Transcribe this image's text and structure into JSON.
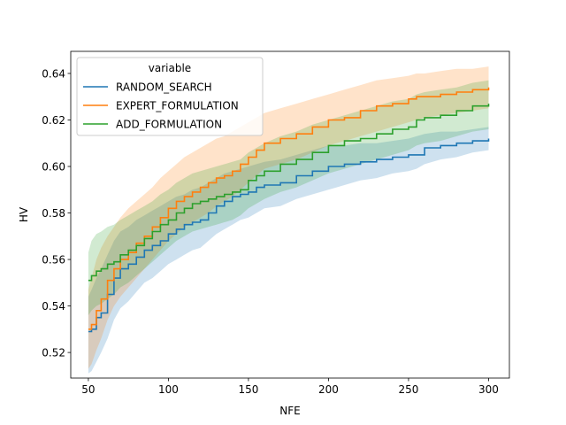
{
  "chart_data": {
    "type": "line",
    "title": "",
    "xlabel": "NFE",
    "ylabel": "HV",
    "xlim": [
      39,
      313
    ],
    "ylim": [
      0.509,
      0.6495
    ],
    "xticks": [
      50,
      100,
      150,
      200,
      250,
      300
    ],
    "xtick_labels": [
      "50",
      "100",
      "150",
      "200",
      "250",
      "300"
    ],
    "yticks": [
      0.52,
      0.54,
      0.56,
      0.58,
      0.6,
      0.62,
      0.64
    ],
    "ytick_labels": [
      "0.52",
      "0.54",
      "0.56",
      "0.58",
      "0.60",
      "0.62",
      "0.64"
    ],
    "grid": false,
    "legend": {
      "title": "variable",
      "placement": "top-left"
    },
    "series": [
      {
        "name": "RANDOM_SEARCH",
        "color": "#1f77b4",
        "x": [
          50,
          52,
          55,
          58,
          62,
          66,
          70,
          75,
          80,
          85,
          90,
          95,
          100,
          105,
          110,
          115,
          120,
          125,
          130,
          135,
          140,
          145,
          150,
          155,
          160,
          170,
          180,
          190,
          200,
          210,
          220,
          230,
          240,
          250,
          255,
          260,
          270,
          280,
          290,
          300
        ],
        "y": [
          0.529,
          0.53,
          0.535,
          0.537,
          0.545,
          0.552,
          0.556,
          0.558,
          0.561,
          0.564,
          0.566,
          0.568,
          0.571,
          0.573,
          0.575,
          0.576,
          0.577,
          0.58,
          0.583,
          0.585,
          0.587,
          0.588,
          0.589,
          0.591,
          0.592,
          0.593,
          0.596,
          0.598,
          0.6,
          0.601,
          0.602,
          0.603,
          0.604,
          0.605,
          0.605,
          0.608,
          0.609,
          0.61,
          0.611,
          0.612
        ],
        "lower": [
          0.511,
          0.512,
          0.516,
          0.52,
          0.526,
          0.534,
          0.539,
          0.542,
          0.546,
          0.55,
          0.552,
          0.555,
          0.558,
          0.56,
          0.562,
          0.564,
          0.565,
          0.568,
          0.571,
          0.573,
          0.575,
          0.577,
          0.578,
          0.58,
          0.582,
          0.583,
          0.586,
          0.588,
          0.59,
          0.592,
          0.594,
          0.595,
          0.597,
          0.598,
          0.599,
          0.601,
          0.603,
          0.604,
          0.606,
          0.607
        ],
        "upper": [
          0.544,
          0.547,
          0.552,
          0.556,
          0.562,
          0.568,
          0.572,
          0.574,
          0.577,
          0.579,
          0.581,
          0.583,
          0.585,
          0.587,
          0.588,
          0.59,
          0.591,
          0.593,
          0.595,
          0.597,
          0.598,
          0.599,
          0.6,
          0.601,
          0.602,
          0.603,
          0.605,
          0.607,
          0.609,
          0.609,
          0.61,
          0.61,
          0.611,
          0.612,
          0.613,
          0.614,
          0.615,
          0.615,
          0.616,
          0.617
        ]
      },
      {
        "name": "EXPERT_FORMULATION",
        "color": "#ff7f0e",
        "x": [
          50,
          52,
          55,
          58,
          62,
          66,
          70,
          75,
          80,
          85,
          90,
          95,
          100,
          105,
          110,
          115,
          120,
          125,
          130,
          135,
          140,
          145,
          150,
          155,
          160,
          170,
          180,
          190,
          200,
          210,
          220,
          230,
          240,
          250,
          255,
          260,
          270,
          280,
          290,
          300
        ],
        "y": [
          0.53,
          0.532,
          0.538,
          0.543,
          0.551,
          0.556,
          0.56,
          0.563,
          0.567,
          0.57,
          0.574,
          0.578,
          0.582,
          0.585,
          0.587,
          0.589,
          0.591,
          0.593,
          0.595,
          0.596,
          0.598,
          0.601,
          0.604,
          0.607,
          0.61,
          0.612,
          0.614,
          0.617,
          0.62,
          0.621,
          0.624,
          0.626,
          0.627,
          0.629,
          0.63,
          0.63,
          0.631,
          0.632,
          0.633,
          0.634
        ],
        "lower": [
          0.513,
          0.515,
          0.521,
          0.526,
          0.534,
          0.54,
          0.544,
          0.548,
          0.552,
          0.556,
          0.56,
          0.564,
          0.568,
          0.571,
          0.574,
          0.576,
          0.578,
          0.58,
          0.583,
          0.585,
          0.587,
          0.59,
          0.593,
          0.596,
          0.599,
          0.601,
          0.603,
          0.606,
          0.609,
          0.611,
          0.613,
          0.615,
          0.617,
          0.619,
          0.62,
          0.621,
          0.622,
          0.623,
          0.624,
          0.625
        ],
        "upper": [
          0.547,
          0.552,
          0.56,
          0.565,
          0.57,
          0.574,
          0.578,
          0.582,
          0.585,
          0.588,
          0.591,
          0.595,
          0.598,
          0.601,
          0.604,
          0.606,
          0.608,
          0.61,
          0.612,
          0.613,
          0.615,
          0.617,
          0.619,
          0.621,
          0.623,
          0.625,
          0.627,
          0.629,
          0.631,
          0.633,
          0.635,
          0.637,
          0.638,
          0.639,
          0.64,
          0.64,
          0.641,
          0.642,
          0.642,
          0.643
        ]
      },
      {
        "name": "ADD_FORMULATION",
        "color": "#2ca02c",
        "x": [
          50,
          52,
          55,
          58,
          62,
          66,
          70,
          75,
          80,
          85,
          90,
          95,
          100,
          105,
          110,
          115,
          120,
          125,
          130,
          135,
          140,
          145,
          150,
          155,
          160,
          170,
          180,
          190,
          200,
          210,
          220,
          230,
          240,
          250,
          255,
          260,
          270,
          280,
          290,
          300
        ],
        "y": [
          0.551,
          0.553,
          0.555,
          0.556,
          0.558,
          0.559,
          0.562,
          0.564,
          0.566,
          0.569,
          0.572,
          0.575,
          0.577,
          0.58,
          0.582,
          0.584,
          0.585,
          0.586,
          0.587,
          0.588,
          0.589,
          0.59,
          0.594,
          0.596,
          0.598,
          0.601,
          0.603,
          0.606,
          0.609,
          0.611,
          0.612,
          0.614,
          0.616,
          0.617,
          0.62,
          0.621,
          0.622,
          0.624,
          0.626,
          0.627
        ],
        "lower": [
          0.536,
          0.538,
          0.54,
          0.541,
          0.543,
          0.545,
          0.548,
          0.55,
          0.553,
          0.556,
          0.559,
          0.562,
          0.565,
          0.568,
          0.57,
          0.572,
          0.573,
          0.574,
          0.575,
          0.576,
          0.577,
          0.579,
          0.582,
          0.584,
          0.586,
          0.589,
          0.591,
          0.594,
          0.597,
          0.599,
          0.601,
          0.603,
          0.605,
          0.607,
          0.609,
          0.61,
          0.611,
          0.613,
          0.615,
          0.616
        ],
        "upper": [
          0.563,
          0.568,
          0.571,
          0.572,
          0.574,
          0.575,
          0.577,
          0.579,
          0.581,
          0.583,
          0.585,
          0.588,
          0.59,
          0.593,
          0.595,
          0.597,
          0.598,
          0.599,
          0.6,
          0.601,
          0.602,
          0.603,
          0.606,
          0.608,
          0.61,
          0.613,
          0.615,
          0.618,
          0.62,
          0.622,
          0.624,
          0.626,
          0.628,
          0.629,
          0.631,
          0.632,
          0.633,
          0.634,
          0.636,
          0.637
        ]
      }
    ]
  }
}
